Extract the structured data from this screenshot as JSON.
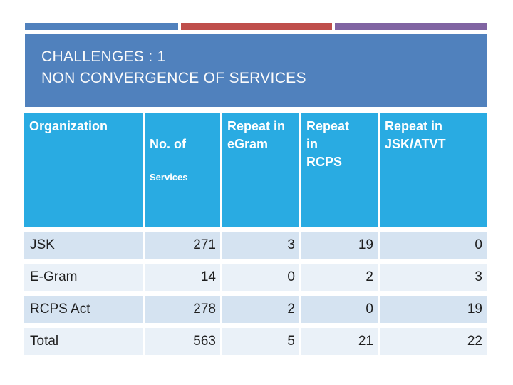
{
  "theme": {
    "slide_bg": "#FFFFFF",
    "bar_blue": "#5081BD",
    "bar_red": "#BF4E4B",
    "bar_purple": "#8064A2",
    "title_box": "#5081BD",
    "title_text": "#FBFBFB",
    "header_bg": "#29ABE2",
    "header_text": "#FFFFFF",
    "row_dark": "#D5E3F1",
    "row_light": "#EAF1F8",
    "body_text": "#1E1E1E"
  },
  "slide": {
    "title": {
      "line1": "CHALLENGES : 1",
      "line2": "NON CONVERGENCE OF SERVICES"
    }
  },
  "table": {
    "columns": [
      {
        "label": "Organization"
      },
      {
        "label": "No. of",
        "sublabel": "Services"
      },
      {
        "label": "Repeat in\neGram"
      },
      {
        "label": "Repeat\nin\nRCPS"
      },
      {
        "label": "Repeat in\nJSK/ATVT"
      }
    ],
    "rows": [
      {
        "org": "JSK",
        "services": "271",
        "egram": "3",
        "rcps": "19",
        "jsk_atvt": "0"
      },
      {
        "org": "E-Gram",
        "services": "14",
        "egram": "0",
        "rcps": "2",
        "jsk_atvt": "3"
      },
      {
        "org": "RCPS Act",
        "services": "278",
        "egram": "2",
        "rcps": "0",
        "jsk_atvt": "19"
      },
      {
        "org": "Total",
        "services": "563",
        "egram": "5",
        "rcps": "21",
        "jsk_atvt": "22"
      }
    ]
  },
  "chart_data": {
    "type": "table",
    "title": "CHALLENGES : 1 NON CONVERGENCE OF SERVICES",
    "columns": [
      "Organization",
      "No. of Services",
      "Repeat in eGram",
      "Repeat in RCPS",
      "Repeat in JSK/ATVT"
    ],
    "rows": [
      [
        "JSK",
        271,
        3,
        19,
        0
      ],
      [
        "E-Gram",
        14,
        0,
        2,
        3
      ],
      [
        "RCPS Act",
        278,
        2,
        0,
        19
      ],
      [
        "Total",
        563,
        5,
        21,
        22
      ]
    ]
  }
}
